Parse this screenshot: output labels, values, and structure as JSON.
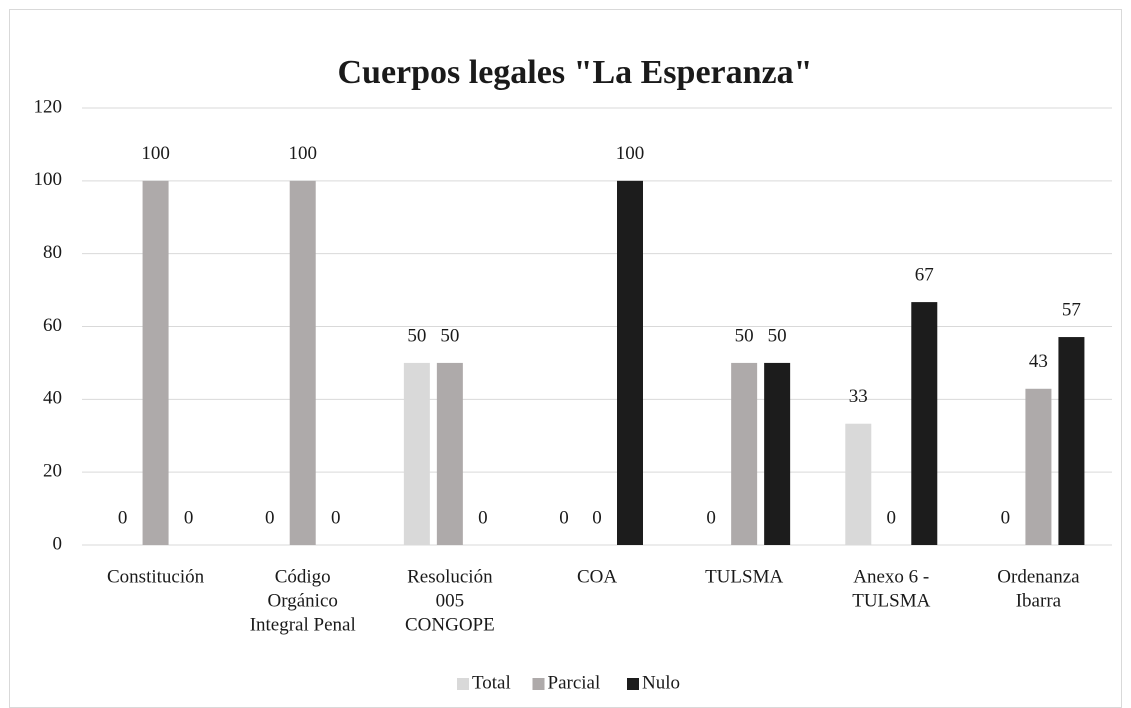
{
  "chart_data": {
    "type": "bar",
    "title": "Cuerpos legales \"La Esperanza\"",
    "categories": [
      [
        "Constitución"
      ],
      [
        "Código",
        "Orgánico",
        "Integral Penal"
      ],
      [
        "Resolución",
        "005",
        "CONGOPE"
      ],
      [
        "COA"
      ],
      [
        "TULSMA"
      ],
      [
        "Anexo 6 -",
        "TULSMA"
      ],
      [
        "Ordenanza",
        "Ibarra"
      ]
    ],
    "series": [
      {
        "name": "Total",
        "color": "#d9d9d9",
        "values": [
          0,
          0,
          50,
          0,
          0,
          33.3,
          0
        ],
        "value_labels": [
          "0",
          "0",
          "50",
          "0",
          "0",
          "33",
          "0"
        ]
      },
      {
        "name": "Parcial",
        "color": "#aeaaaa",
        "values": [
          100,
          100,
          50,
          0,
          50,
          0,
          42.9
        ],
        "value_labels": [
          "100",
          "100",
          "50",
          "0",
          "50",
          "0",
          "43"
        ]
      },
      {
        "name": "Nulo",
        "color": "#1c1c1c",
        "values": [
          0,
          0,
          0,
          100,
          50,
          66.7,
          57.1
        ],
        "value_labels": [
          "0",
          "0",
          "0",
          "100",
          "50",
          "67",
          "57"
        ]
      }
    ],
    "ylim": [
      0,
      120
    ],
    "yticks": [
      0,
      20,
      40,
      60,
      80,
      100,
      120
    ],
    "grid": true,
    "legend": "bottom"
  }
}
